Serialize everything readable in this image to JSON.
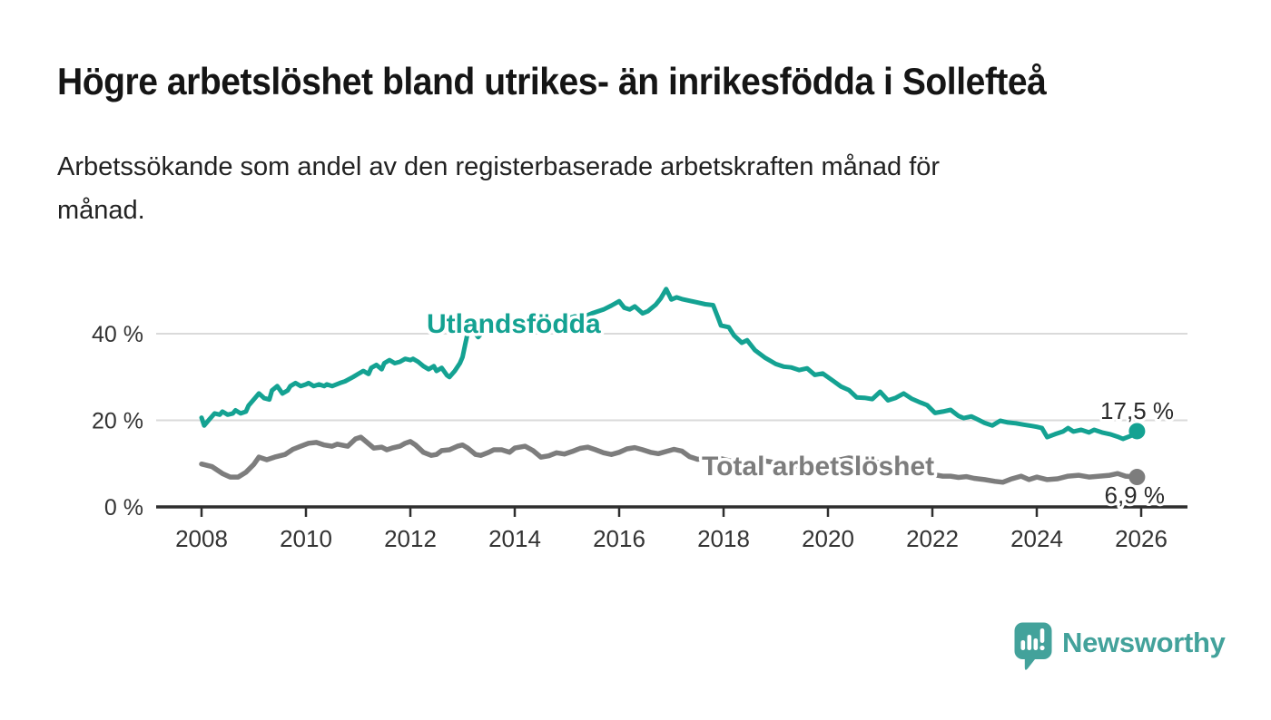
{
  "header": {
    "title": "Högre arbetslöshet bland utrikes- än inrikesfödda i Sollefteå",
    "subtitle_line1": "Arbetssökande som andel av den registerbaserade arbetskraften månad för",
    "subtitle_line2": "månad."
  },
  "colors": {
    "accent_teal": "#14a292",
    "series_gray": "#7d7d7d",
    "grid": "#dadada",
    "axis": "#2e2e2e",
    "text_dark": "#151515",
    "logo_teal": "#43a29b"
  },
  "chart_data": {
    "type": "line",
    "title": "Högre arbetslöshet bland utrikes- än inrikesfödda i Sollefteå",
    "subtitle": "Arbetssökande som andel av den registerbaserade arbetskraften månad för månad.",
    "unit": "%",
    "xlabel": "",
    "ylabel": "",
    "xlim": [
      2007.1,
      2026.9
    ],
    "ylim": [
      0,
      52.5
    ],
    "grid": "horizontal",
    "legend_position": "inline-labels",
    "x_ticks": [
      2008,
      2010,
      2012,
      2014,
      2016,
      2018,
      2020,
      2022,
      2024,
      2026
    ],
    "x_tick_labels": [
      "2008",
      "2010",
      "2012",
      "2014",
      "2016",
      "2018",
      "2020",
      "2022",
      "2024",
      "2026"
    ],
    "y_ticks": [
      {
        "value": 0,
        "label": "0 %"
      },
      {
        "value": 20,
        "label": "20 %"
      },
      {
        "value": 40,
        "label": "40 %"
      }
    ],
    "series": [
      {
        "name": "Utlandsfödda",
        "color": "#14a292",
        "end_value": 17.5,
        "end_label": "17,5 %",
        "points": [
          [
            2008.0,
            20.6
          ],
          [
            2008.05,
            18.8
          ],
          [
            2008.15,
            20.2
          ],
          [
            2008.25,
            21.6
          ],
          [
            2008.35,
            21.3
          ],
          [
            2008.4,
            22.0
          ],
          [
            2008.5,
            21.3
          ],
          [
            2008.6,
            21.6
          ],
          [
            2008.65,
            22.3
          ],
          [
            2008.75,
            21.6
          ],
          [
            2008.85,
            22.0
          ],
          [
            2008.9,
            23.4
          ],
          [
            2009.0,
            24.8
          ],
          [
            2009.1,
            26.2
          ],
          [
            2009.2,
            25.1
          ],
          [
            2009.3,
            24.8
          ],
          [
            2009.35,
            26.9
          ],
          [
            2009.45,
            27.9
          ],
          [
            2009.55,
            26.2
          ],
          [
            2009.65,
            26.9
          ],
          [
            2009.7,
            27.9
          ],
          [
            2009.8,
            28.6
          ],
          [
            2009.9,
            27.9
          ],
          [
            2010.0,
            28.3
          ],
          [
            2010.05,
            28.6
          ],
          [
            2010.15,
            27.9
          ],
          [
            2010.25,
            28.3
          ],
          [
            2010.35,
            27.9
          ],
          [
            2010.4,
            28.3
          ],
          [
            2010.5,
            27.9
          ],
          [
            2010.65,
            28.6
          ],
          [
            2010.75,
            29.0
          ],
          [
            2010.9,
            30.0
          ],
          [
            2011.0,
            30.7
          ],
          [
            2011.1,
            31.4
          ],
          [
            2011.2,
            30.7
          ],
          [
            2011.25,
            32.1
          ],
          [
            2011.35,
            32.8
          ],
          [
            2011.45,
            31.8
          ],
          [
            2011.5,
            33.2
          ],
          [
            2011.6,
            33.9
          ],
          [
            2011.7,
            33.2
          ],
          [
            2011.8,
            33.5
          ],
          [
            2011.9,
            34.2
          ],
          [
            2012.0,
            33.9
          ],
          [
            2012.05,
            34.2
          ],
          [
            2012.15,
            33.5
          ],
          [
            2012.25,
            32.5
          ],
          [
            2012.35,
            31.8
          ],
          [
            2012.45,
            32.5
          ],
          [
            2012.5,
            31.4
          ],
          [
            2012.6,
            32.1
          ],
          [
            2012.7,
            30.4
          ],
          [
            2012.75,
            30.0
          ],
          [
            2012.85,
            31.4
          ],
          [
            2012.95,
            33.2
          ],
          [
            2013.0,
            34.6
          ],
          [
            2013.05,
            37.5
          ],
          [
            2013.1,
            40.2
          ],
          [
            2013.2,
            40.8
          ],
          [
            2013.3,
            39.2
          ],
          [
            2013.4,
            40.6
          ],
          [
            2013.5,
            41.3
          ],
          [
            2013.6,
            40.3
          ],
          [
            2013.75,
            41.0
          ],
          [
            2013.9,
            41.8
          ],
          [
            2014.0,
            42.0
          ],
          [
            2014.1,
            41.2
          ],
          [
            2014.25,
            42.3
          ],
          [
            2014.4,
            41.8
          ],
          [
            2014.5,
            42.5
          ],
          [
            2014.65,
            43.0
          ],
          [
            2014.8,
            42.6
          ],
          [
            2015.0,
            43.4
          ],
          [
            2015.15,
            44.0
          ],
          [
            2015.3,
            43.8
          ],
          [
            2015.5,
            44.8
          ],
          [
            2015.7,
            45.6
          ],
          [
            2015.85,
            46.5
          ],
          [
            2016.0,
            47.5
          ],
          [
            2016.1,
            46.0
          ],
          [
            2016.2,
            45.6
          ],
          [
            2016.3,
            46.3
          ],
          [
            2016.45,
            44.7
          ],
          [
            2016.55,
            45.2
          ],
          [
            2016.7,
            46.7
          ],
          [
            2016.8,
            48.2
          ],
          [
            2016.9,
            50.3
          ],
          [
            2017.0,
            47.9
          ],
          [
            2017.1,
            48.4
          ],
          [
            2017.2,
            48.0
          ],
          [
            2017.35,
            47.6
          ],
          [
            2017.5,
            47.2
          ],
          [
            2017.65,
            46.8
          ],
          [
            2017.8,
            46.6
          ],
          [
            2017.9,
            43.5
          ],
          [
            2017.95,
            41.9
          ],
          [
            2018.1,
            41.5
          ],
          [
            2018.2,
            39.6
          ],
          [
            2018.35,
            37.9
          ],
          [
            2018.45,
            38.5
          ],
          [
            2018.6,
            36.2
          ],
          [
            2018.8,
            34.4
          ],
          [
            2019.0,
            33.0
          ],
          [
            2019.15,
            32.4
          ],
          [
            2019.3,
            32.2
          ],
          [
            2019.45,
            31.6
          ],
          [
            2019.6,
            32.0
          ],
          [
            2019.75,
            30.5
          ],
          [
            2019.9,
            30.8
          ],
          [
            2020.1,
            29.1
          ],
          [
            2020.25,
            27.8
          ],
          [
            2020.4,
            27.0
          ],
          [
            2020.55,
            25.3
          ],
          [
            2020.7,
            25.2
          ],
          [
            2020.85,
            24.9
          ],
          [
            2021.0,
            26.6
          ],
          [
            2021.15,
            24.6
          ],
          [
            2021.3,
            25.2
          ],
          [
            2021.45,
            26.2
          ],
          [
            2021.6,
            25.0
          ],
          [
            2021.75,
            24.2
          ],
          [
            2021.9,
            23.5
          ],
          [
            2022.05,
            21.7
          ],
          [
            2022.2,
            22.0
          ],
          [
            2022.35,
            22.4
          ],
          [
            2022.5,
            21.0
          ],
          [
            2022.6,
            20.5
          ],
          [
            2022.75,
            20.9
          ],
          [
            2022.9,
            20.0
          ],
          [
            2023.0,
            19.4
          ],
          [
            2023.15,
            18.8
          ],
          [
            2023.3,
            19.9
          ],
          [
            2023.45,
            19.5
          ],
          [
            2023.6,
            19.3
          ],
          [
            2023.75,
            19.0
          ],
          [
            2023.9,
            18.7
          ],
          [
            2024.0,
            18.5
          ],
          [
            2024.1,
            18.2
          ],
          [
            2024.2,
            16.1
          ],
          [
            2024.35,
            16.8
          ],
          [
            2024.5,
            17.4
          ],
          [
            2024.6,
            18.2
          ],
          [
            2024.7,
            17.4
          ],
          [
            2024.85,
            17.8
          ],
          [
            2025.0,
            17.2
          ],
          [
            2025.1,
            17.8
          ],
          [
            2025.25,
            17.2
          ],
          [
            2025.4,
            16.8
          ],
          [
            2025.55,
            16.2
          ],
          [
            2025.65,
            15.7
          ],
          [
            2025.8,
            16.4
          ],
          [
            2025.92,
            17.5
          ]
        ]
      },
      {
        "name": "Total arbetslöshet",
        "color": "#7d7d7d",
        "end_value": 6.9,
        "end_label": "6,9 %",
        "points": [
          [
            2008.0,
            9.9
          ],
          [
            2008.2,
            9.3
          ],
          [
            2008.4,
            7.7
          ],
          [
            2008.55,
            6.9
          ],
          [
            2008.7,
            6.9
          ],
          [
            2008.85,
            8.0
          ],
          [
            2009.0,
            9.8
          ],
          [
            2009.1,
            11.5
          ],
          [
            2009.25,
            10.9
          ],
          [
            2009.4,
            11.5
          ],
          [
            2009.6,
            12.1
          ],
          [
            2009.75,
            13.3
          ],
          [
            2009.9,
            14.0
          ],
          [
            2010.05,
            14.7
          ],
          [
            2010.2,
            14.9
          ],
          [
            2010.35,
            14.3
          ],
          [
            2010.5,
            14.0
          ],
          [
            2010.6,
            14.5
          ],
          [
            2010.8,
            14.0
          ],
          [
            2010.95,
            15.7
          ],
          [
            2011.05,
            16.1
          ],
          [
            2011.15,
            15.1
          ],
          [
            2011.3,
            13.6
          ],
          [
            2011.45,
            13.8
          ],
          [
            2011.55,
            13.2
          ],
          [
            2011.65,
            13.6
          ],
          [
            2011.8,
            14.0
          ],
          [
            2011.9,
            14.7
          ],
          [
            2012.0,
            15.1
          ],
          [
            2012.1,
            14.3
          ],
          [
            2012.25,
            12.6
          ],
          [
            2012.4,
            11.9
          ],
          [
            2012.5,
            12.1
          ],
          [
            2012.6,
            13.0
          ],
          [
            2012.75,
            13.2
          ],
          [
            2012.9,
            14.0
          ],
          [
            2013.0,
            14.3
          ],
          [
            2013.1,
            13.6
          ],
          [
            2013.25,
            12.1
          ],
          [
            2013.35,
            11.9
          ],
          [
            2013.5,
            12.6
          ],
          [
            2013.6,
            13.2
          ],
          [
            2013.75,
            13.2
          ],
          [
            2013.9,
            12.6
          ],
          [
            2014.0,
            13.6
          ],
          [
            2014.2,
            14.0
          ],
          [
            2014.35,
            13.0
          ],
          [
            2014.5,
            11.5
          ],
          [
            2014.65,
            11.8
          ],
          [
            2014.8,
            12.5
          ],
          [
            2014.95,
            12.2
          ],
          [
            2015.1,
            12.8
          ],
          [
            2015.25,
            13.5
          ],
          [
            2015.4,
            13.8
          ],
          [
            2015.55,
            13.2
          ],
          [
            2015.7,
            12.5
          ],
          [
            2015.85,
            12.1
          ],
          [
            2016.0,
            12.6
          ],
          [
            2016.15,
            13.4
          ],
          [
            2016.3,
            13.7
          ],
          [
            2016.45,
            13.2
          ],
          [
            2016.6,
            12.6
          ],
          [
            2016.75,
            12.3
          ],
          [
            2016.9,
            12.8
          ],
          [
            2017.05,
            13.3
          ],
          [
            2017.2,
            12.9
          ],
          [
            2017.35,
            11.6
          ],
          [
            2017.5,
            11.0
          ],
          [
            2017.65,
            11.2
          ],
          [
            2017.8,
            11.5
          ],
          [
            2018.0,
            11.0
          ],
          [
            2018.2,
            10.4
          ],
          [
            2018.4,
            10.0
          ],
          [
            2018.6,
            10.3
          ],
          [
            2018.8,
            10.6
          ],
          [
            2019.0,
            10.2
          ],
          [
            2019.2,
            9.7
          ],
          [
            2019.4,
            9.4
          ],
          [
            2019.6,
            9.6
          ],
          [
            2019.8,
            9.9
          ],
          [
            2020.0,
            10.0
          ],
          [
            2020.2,
            10.8
          ],
          [
            2020.4,
            11.3
          ],
          [
            2020.6,
            11.0
          ],
          [
            2020.8,
            10.6
          ],
          [
            2021.0,
            10.2
          ],
          [
            2021.2,
            9.6
          ],
          [
            2021.4,
            9.0
          ],
          [
            2021.6,
            8.5
          ],
          [
            2021.8,
            8.0
          ],
          [
            2022.0,
            7.5
          ],
          [
            2022.2,
            7.1
          ],
          [
            2022.35,
            7.1
          ],
          [
            2022.5,
            6.8
          ],
          [
            2022.65,
            7.0
          ],
          [
            2022.8,
            6.6
          ],
          [
            2023.0,
            6.3
          ],
          [
            2023.2,
            5.9
          ],
          [
            2023.35,
            5.7
          ],
          [
            2023.5,
            6.4
          ],
          [
            2023.7,
            7.1
          ],
          [
            2023.85,
            6.3
          ],
          [
            2024.0,
            6.9
          ],
          [
            2024.2,
            6.3
          ],
          [
            2024.4,
            6.5
          ],
          [
            2024.6,
            7.1
          ],
          [
            2024.8,
            7.3
          ],
          [
            2025.0,
            6.9
          ],
          [
            2025.2,
            7.1
          ],
          [
            2025.4,
            7.3
          ],
          [
            2025.55,
            7.7
          ],
          [
            2025.7,
            7.1
          ],
          [
            2025.92,
            6.9
          ]
        ]
      }
    ]
  },
  "branding": {
    "logo_text": "Newsworthy",
    "logo_icon": "bar-chart-speech-bubble-icon"
  }
}
